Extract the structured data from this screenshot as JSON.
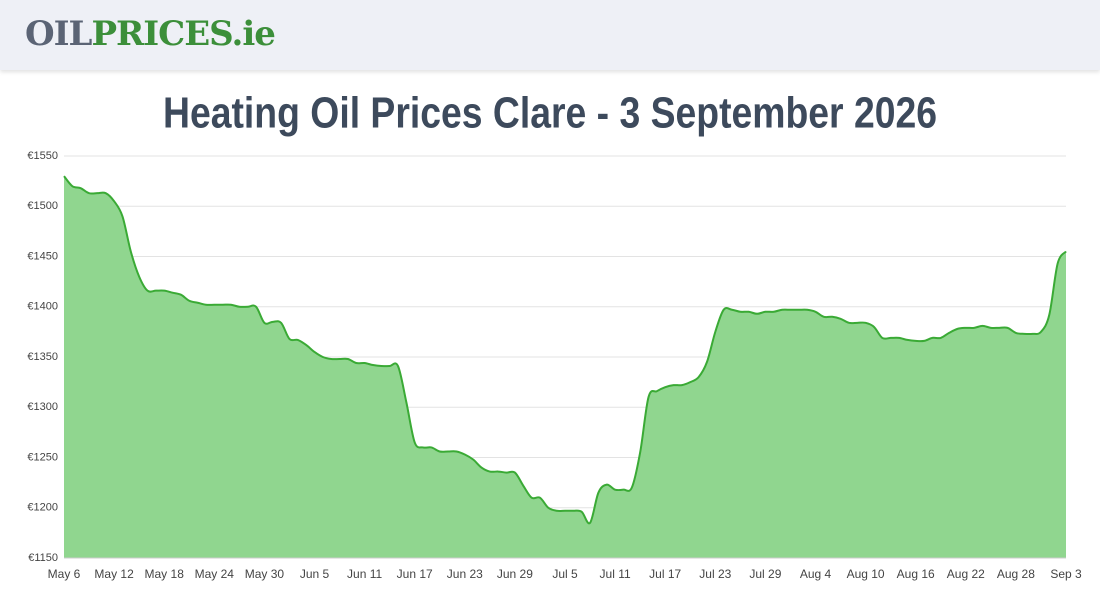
{
  "header": {
    "logo": [
      "OIL",
      "PRICES",
      ".ie"
    ]
  },
  "chart_data": {
    "type": "area",
    "title": "Heating Oil Prices Clare - 3 September 2026",
    "categories": [
      "May 6",
      null,
      null,
      null,
      null,
      null,
      "May 12",
      null,
      null,
      null,
      null,
      null,
      "May 18",
      null,
      null,
      null,
      null,
      null,
      "May 24",
      null,
      null,
      null,
      null,
      null,
      "May 30",
      null,
      null,
      null,
      null,
      null,
      "Jun 5",
      null,
      null,
      null,
      null,
      null,
      "Jun 11",
      null,
      null,
      null,
      null,
      null,
      "Jun 17",
      null,
      null,
      null,
      null,
      null,
      "Jun 23",
      null,
      null,
      null,
      null,
      null,
      "Jun 29",
      null,
      null,
      null,
      null,
      null,
      "Jul 5",
      null,
      null,
      null,
      null,
      null,
      "Jul 11",
      null,
      null,
      null,
      null,
      null,
      "Jul 17",
      null,
      null,
      null,
      null,
      null,
      "Jul 23",
      null,
      null,
      null,
      null,
      null,
      "Jul 29",
      null,
      null,
      null,
      null,
      null,
      "Aug 4",
      null,
      null,
      null,
      null,
      null,
      "Aug 10",
      null,
      null,
      null,
      null,
      null,
      "Aug 16",
      null,
      null,
      null,
      null,
      null,
      "Aug 22",
      null,
      null,
      null,
      null,
      null,
      "Aug 28",
      null,
      null,
      null,
      null,
      null,
      "Sep 3"
    ],
    "values": [
      1530,
      1520,
      1518,
      1513,
      1513,
      1513,
      1505,
      1490,
      1455,
      1430,
      1416,
      1416,
      1416,
      1414,
      1412,
      1406,
      1404,
      1402,
      1402,
      1402,
      1402,
      1400,
      1400,
      1400,
      1384,
      1385,
      1384,
      1368,
      1367,
      1362,
      1355,
      1350,
      1348,
      1348,
      1348,
      1344,
      1344,
      1342,
      1341,
      1341,
      1341,
      1305,
      1265,
      1260,
      1260,
      1256,
      1256,
      1256,
      1253,
      1248,
      1240,
      1236,
      1236,
      1235,
      1235,
      1222,
      1210,
      1210,
      1200,
      1197,
      1197,
      1197,
      1196,
      1185,
      1215,
      1223,
      1218,
      1218,
      1220,
      1255,
      1310,
      1316,
      1320,
      1322,
      1322,
      1325,
      1330,
      1345,
      1375,
      1397,
      1397,
      1395,
      1395,
      1393,
      1395,
      1395,
      1397,
      1397,
      1397,
      1397,
      1395,
      1390,
      1390,
      1388,
      1384,
      1384,
      1384,
      1380,
      1369,
      1369,
      1369,
      1367,
      1366,
      1366,
      1369,
      1369,
      1374,
      1378,
      1379,
      1379,
      1381,
      1379,
      1379,
      1379,
      1374,
      1373,
      1373,
      1375,
      1392,
      1443,
      1455
    ],
    "color": "#3aaa35",
    "fill": "#90d68f",
    "ylim": [
      1150,
      1550
    ],
    "yticks": [
      {
        "value": 1150,
        "label": "€1150"
      },
      {
        "value": 1200,
        "label": "€1200"
      },
      {
        "value": 1250,
        "label": "€1250"
      },
      {
        "value": 1300,
        "label": "€1300"
      },
      {
        "value": 1350,
        "label": "€1350"
      },
      {
        "value": 1400,
        "label": "€1400"
      },
      {
        "value": 1450,
        "label": "€1450"
      },
      {
        "value": 1500,
        "label": "€1500"
      },
      {
        "value": 1550,
        "label": "€1550"
      }
    ],
    "grid": true
  }
}
